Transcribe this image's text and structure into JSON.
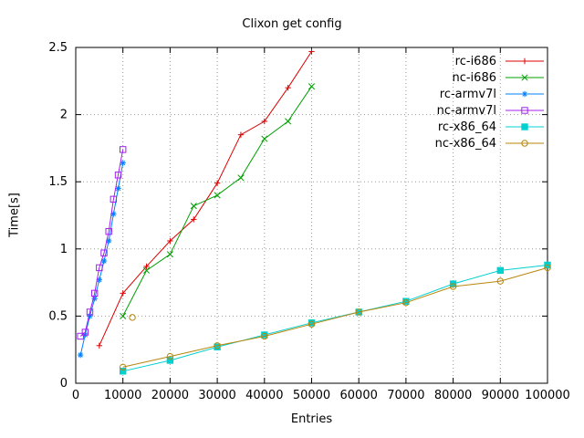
{
  "chart_data": {
    "type": "line",
    "title": "Clixon get config",
    "xlabel": "Entries",
    "ylabel": "Time[s]",
    "xlim": [
      0,
      100000
    ],
    "ylim": [
      0,
      2.5
    ],
    "xticks": [
      0,
      10000,
      20000,
      30000,
      40000,
      50000,
      60000,
      70000,
      80000,
      90000,
      100000
    ],
    "yticks": [
      0,
      0.5,
      1,
      1.5,
      2,
      2.5
    ],
    "grid": "dotted",
    "legend_position": "top-right-inside",
    "series": [
      {
        "name": "rc-i686",
        "color": "#dd0000",
        "marker": "plus",
        "points": [
          [
            5000,
            0.28
          ],
          [
            10000,
            0.67
          ],
          [
            15000,
            0.87
          ],
          [
            20000,
            1.06
          ],
          [
            25000,
            1.22
          ],
          [
            30000,
            1.49
          ],
          [
            35000,
            1.85
          ],
          [
            40000,
            1.95
          ],
          [
            45000,
            2.2
          ],
          [
            50000,
            2.47
          ]
        ]
      },
      {
        "name": "nc-i686",
        "color": "#00a000",
        "marker": "cross",
        "points": [
          [
            10000,
            0.5
          ],
          [
            15000,
            0.84
          ],
          [
            20000,
            0.96
          ],
          [
            25000,
            1.32
          ],
          [
            30000,
            1.4
          ],
          [
            35000,
            1.53
          ],
          [
            40000,
            1.82
          ],
          [
            45000,
            1.95
          ],
          [
            50000,
            2.21
          ]
        ]
      },
      {
        "name": "rc-armv7l",
        "color": "#0080ff",
        "marker": "asterisk",
        "points": [
          [
            1000,
            0.21
          ],
          [
            2000,
            0.36
          ],
          [
            3000,
            0.5
          ],
          [
            4000,
            0.63
          ],
          [
            5000,
            0.77
          ],
          [
            6000,
            0.91
          ],
          [
            7000,
            1.06
          ],
          [
            8000,
            1.26
          ],
          [
            9000,
            1.45
          ],
          [
            10000,
            1.64
          ]
        ]
      },
      {
        "name": "nc-armv7l",
        "color": "#a020f0",
        "marker": "square-open",
        "points": [
          [
            1000,
            0.35
          ],
          [
            2000,
            0.38
          ],
          [
            3000,
            0.53
          ],
          [
            4000,
            0.67
          ],
          [
            5000,
            0.86
          ],
          [
            6000,
            0.97
          ],
          [
            7000,
            1.13
          ],
          [
            8000,
            1.37
          ],
          [
            9000,
            1.55
          ],
          [
            10000,
            1.74
          ]
        ]
      },
      {
        "name": "rc-x86_64",
        "color": "#00d0d0",
        "marker": "square-filled",
        "points": [
          [
            10000,
            0.09
          ],
          [
            20000,
            0.17
          ],
          [
            30000,
            0.27
          ],
          [
            40000,
            0.36
          ],
          [
            50000,
            0.45
          ],
          [
            60000,
            0.53
          ],
          [
            70000,
            0.61
          ],
          [
            80000,
            0.74
          ],
          [
            90000,
            0.84
          ],
          [
            100000,
            0.88
          ]
        ]
      },
      {
        "name": "nc-x86_64",
        "color": "#b8860b",
        "marker": "circle-open",
        "points": [
          [
            10000,
            0.12
          ],
          [
            20000,
            0.2
          ],
          [
            30000,
            0.28
          ],
          [
            40000,
            0.35
          ],
          [
            50000,
            0.44
          ],
          [
            60000,
            0.53
          ],
          [
            70000,
            0.6
          ],
          [
            80000,
            0.72
          ],
          [
            90000,
            0.76
          ],
          [
            100000,
            0.86
          ]
        ]
      }
    ],
    "extra_points": [
      {
        "series": "nc-x86_64",
        "color": "#b8860b",
        "marker": "circle-open",
        "x": 12000,
        "y": 0.49
      }
    ]
  }
}
